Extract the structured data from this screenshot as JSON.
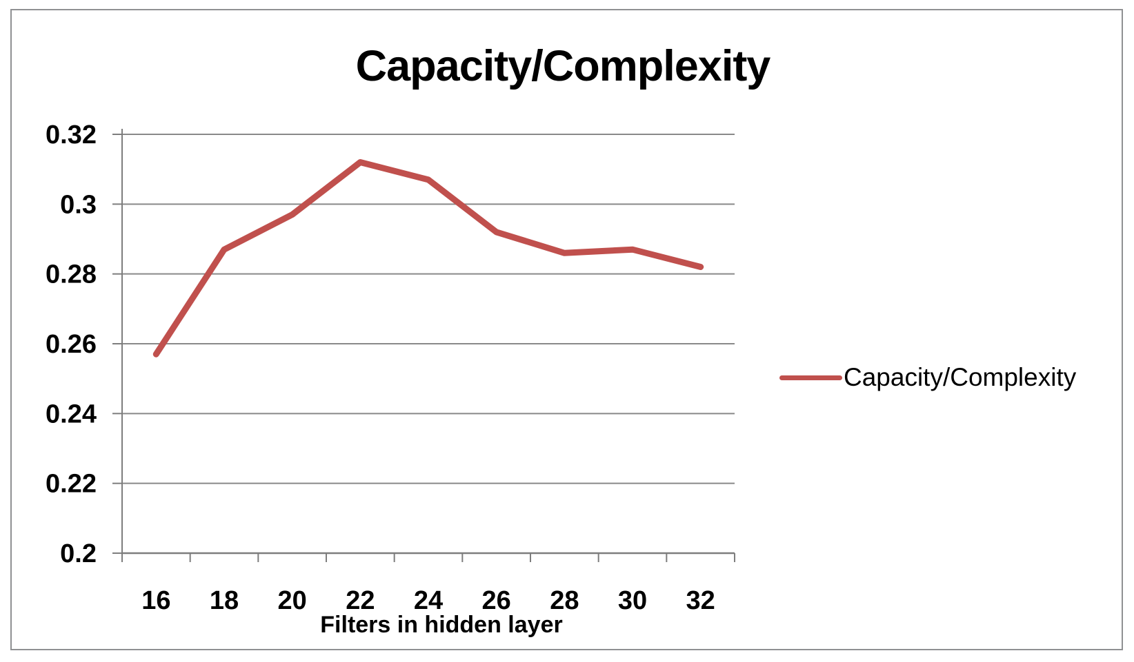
{
  "chart_data": {
    "type": "line",
    "title": "Capacity/Complexity",
    "xlabel": "Filters in hidden layer",
    "ylabel": "",
    "categories": [
      "16",
      "18",
      "20",
      "22",
      "24",
      "26",
      "28",
      "30",
      "32"
    ],
    "series": [
      {
        "name": "Capacity/Complexity",
        "color": "#C0504D",
        "values": [
          0.257,
          0.287,
          0.297,
          0.312,
          0.307,
          0.292,
          0.286,
          0.287,
          0.282
        ]
      }
    ],
    "ylim": [
      0.2,
      0.32
    ],
    "ytick_step": 0.02,
    "ytick_labels": [
      "0.2",
      "0.22",
      "0.24",
      "0.26",
      "0.28",
      "0.3",
      "0.32"
    ],
    "grid": true,
    "legend_position": "right"
  },
  "colors": {
    "series_line": "#C0504D",
    "gridline": "#898989",
    "axis_line": "#7d7d7d",
    "tick": "#7d7d7d",
    "frame_border": "#8f9092",
    "text": "#000000",
    "background": "#ffffff"
  }
}
